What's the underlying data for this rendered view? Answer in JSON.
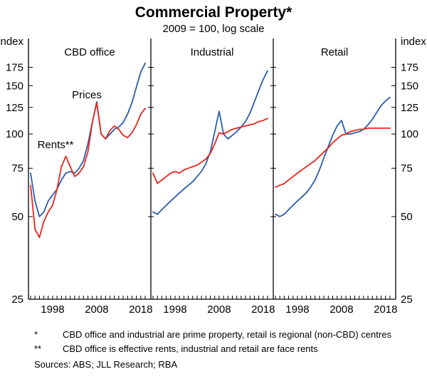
{
  "title": "Commercial Property*",
  "subtitle": "2009 = 100, log scale",
  "y_unit_left": "index",
  "y_unit_right": "index",
  "series_labels": {
    "prices": "Prices",
    "rents": "Rents**"
  },
  "colors": {
    "prices": "#2a5caa",
    "rents": "#e8261d",
    "axis": "#000000"
  },
  "axes": {
    "yticks": [
      25,
      50,
      75,
      100,
      125,
      150,
      175
    ],
    "xticks": [
      1998,
      2008,
      2018
    ],
    "ylim": [
      25,
      205
    ],
    "xlim": [
      1993,
      2019
    ],
    "log_scale": true
  },
  "footnotes": [
    {
      "marker": "*",
      "text": "CBD office and industrial are prime property, retail is regional (non-CBD) centres"
    },
    {
      "marker": "**",
      "text": "CBD office is effective rents, industrial and retail are face rents"
    }
  ],
  "sources": "Sources: ABS; JLL Research; RBA",
  "chart_data": [
    {
      "type": "line",
      "title": "CBD office",
      "ylabel": "index",
      "ylim": [
        25,
        205
      ],
      "log_scale": true,
      "x": [
        1993,
        1994,
        1995,
        1996,
        1997,
        1998,
        1999,
        2000,
        2001,
        2002,
        2003,
        2004,
        2005,
        2006,
        2007,
        2008,
        2009,
        2010,
        2011,
        2012,
        2013,
        2014,
        2015,
        2016,
        2017,
        2018,
        2019
      ],
      "series": [
        {
          "name": "Prices",
          "values": [
            72,
            57,
            50,
            52,
            57,
            60,
            63,
            68,
            72,
            73,
            72,
            75,
            80,
            92,
            110,
            131,
            100,
            96,
            100,
            104,
            106,
            110,
            118,
            130,
            148,
            168,
            181
          ]
        },
        {
          "name": "Rents**",
          "values": [
            65,
            45,
            42,
            48,
            52,
            55,
            63,
            76,
            83,
            76,
            70,
            72,
            76,
            86,
            110,
            130,
            100,
            96,
            103,
            107,
            104,
            99,
            97,
            101,
            108,
            118,
            124
          ]
        }
      ]
    },
    {
      "type": "line",
      "title": "Industrial",
      "ylabel": "index",
      "ylim": [
        25,
        205
      ],
      "log_scale": true,
      "x": [
        1993,
        1994,
        1995,
        1996,
        1997,
        1998,
        1999,
        2000,
        2001,
        2002,
        2003,
        2004,
        2005,
        2006,
        2007,
        2008,
        2009,
        2010,
        2011,
        2012,
        2013,
        2014,
        2015,
        2016,
        2017,
        2018,
        2019
      ],
      "series": [
        {
          "name": "Prices",
          "values": [
            52,
            51,
            53,
            55,
            57,
            59,
            61,
            63,
            65,
            67,
            70,
            73,
            78,
            86,
            102,
            121,
            100,
            96,
            99,
            102,
            106,
            111,
            119,
            131,
            144,
            158,
            170
          ]
        },
        {
          "name": "Rents**",
          "values": [
            72,
            66,
            68,
            70,
            72,
            73,
            72,
            74,
            75,
            76,
            77,
            79,
            81,
            85,
            92,
            101,
            100,
            102,
            104,
            105,
            106,
            107,
            108,
            109,
            111,
            112,
            114
          ]
        }
      ]
    },
    {
      "type": "line",
      "title": "Retail",
      "ylabel": "index",
      "ylim": [
        25,
        205
      ],
      "log_scale": true,
      "x": [
        1993,
        1994,
        1995,
        1996,
        1997,
        1998,
        1999,
        2000,
        2001,
        2002,
        2003,
        2004,
        2005,
        2006,
        2007,
        2008,
        2009,
        2010,
        2011,
        2012,
        2013,
        2014,
        2015,
        2016,
        2017,
        2018,
        2019
      ],
      "series": [
        {
          "name": "Prices",
          "values": [
            51,
            50,
            51,
            53,
            55,
            57,
            59,
            61,
            64,
            68,
            74,
            82,
            90,
            99,
            107,
            112,
            100,
            100,
            101,
            102,
            104,
            108,
            113,
            120,
            127,
            132,
            136
          ]
        },
        {
          "name": "Rents**",
          "values": [
            64,
            65,
            66,
            68,
            70,
            72,
            74,
            76,
            78,
            80,
            83,
            86,
            89,
            93,
            96,
            99,
            100,
            102,
            103,
            104,
            104,
            105,
            105,
            105,
            105,
            105,
            105
          ]
        }
      ]
    }
  ]
}
